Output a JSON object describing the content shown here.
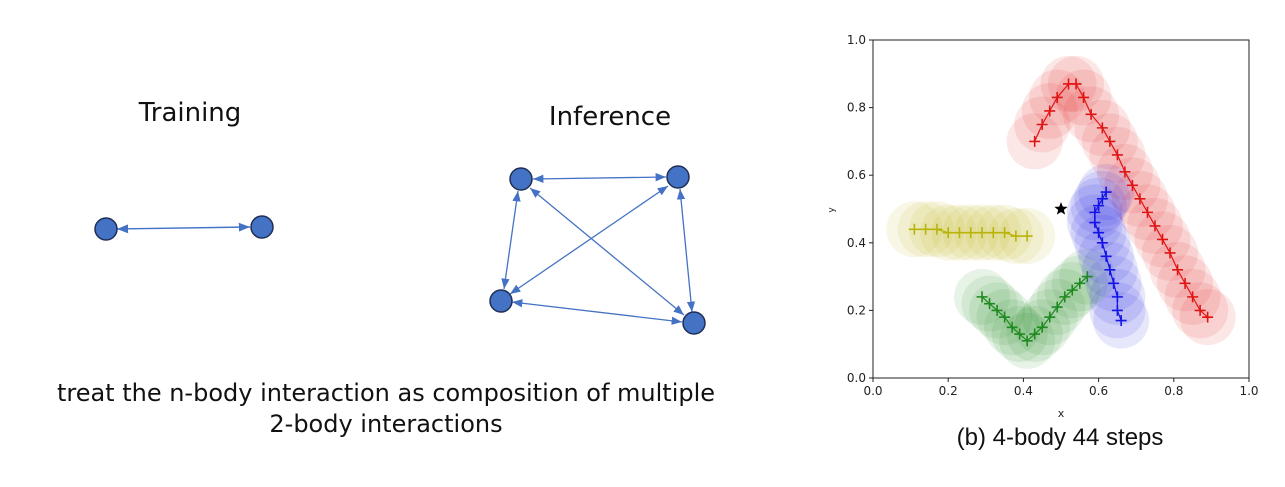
{
  "diagram": {
    "training_title": "Training",
    "inference_title": "Inference",
    "caption_line1": "treat the n-body interaction as composition of multiple",
    "caption_line2": "2-body interactions",
    "node_color": "#4472C4",
    "edge_color": "#4472C4"
  },
  "plot": {
    "caption": "(b) 4-body 44 steps",
    "xlabel": "x",
    "ylabel": "y",
    "x_ticks": [
      "0.0",
      "0.2",
      "0.4",
      "0.6",
      "0.8",
      "1.0"
    ],
    "y_ticks": [
      "0.0",
      "0.2",
      "0.4",
      "0.6",
      "0.8",
      "1.0"
    ]
  },
  "chart_data": {
    "type": "scatter",
    "xlabel": "x",
    "ylabel": "y",
    "xlim": [
      0.0,
      1.0
    ],
    "ylim": [
      0.0,
      1.0
    ],
    "series": [
      {
        "color": "#e11414",
        "marker": "+",
        "points": [
          [
            0.43,
            0.7
          ],
          [
            0.45,
            0.75
          ],
          [
            0.47,
            0.79
          ],
          [
            0.49,
            0.83
          ],
          [
            0.52,
            0.87
          ],
          [
            0.54,
            0.87
          ],
          [
            0.56,
            0.83
          ],
          [
            0.58,
            0.78
          ],
          [
            0.61,
            0.74
          ],
          [
            0.63,
            0.7
          ],
          [
            0.65,
            0.66
          ],
          [
            0.67,
            0.61
          ],
          [
            0.69,
            0.57
          ],
          [
            0.71,
            0.53
          ],
          [
            0.73,
            0.49
          ],
          [
            0.75,
            0.45
          ],
          [
            0.77,
            0.41
          ],
          [
            0.79,
            0.37
          ],
          [
            0.81,
            0.32
          ],
          [
            0.83,
            0.28
          ],
          [
            0.85,
            0.24
          ],
          [
            0.87,
            0.2
          ],
          [
            0.89,
            0.18
          ]
        ]
      },
      {
        "color": "#b8b40a",
        "marker": "+",
        "points": [
          [
            0.11,
            0.44
          ],
          [
            0.14,
            0.44
          ],
          [
            0.17,
            0.44
          ],
          [
            0.2,
            0.43
          ],
          [
            0.23,
            0.43
          ],
          [
            0.26,
            0.43
          ],
          [
            0.29,
            0.43
          ],
          [
            0.32,
            0.43
          ],
          [
            0.35,
            0.43
          ],
          [
            0.38,
            0.42
          ],
          [
            0.41,
            0.42
          ]
        ]
      },
      {
        "color": "#1f8a1f",
        "marker": "+",
        "points": [
          [
            0.29,
            0.24
          ],
          [
            0.31,
            0.22
          ],
          [
            0.33,
            0.2
          ],
          [
            0.35,
            0.18
          ],
          [
            0.37,
            0.15
          ],
          [
            0.39,
            0.13
          ],
          [
            0.41,
            0.11
          ],
          [
            0.43,
            0.13
          ],
          [
            0.45,
            0.15
          ],
          [
            0.47,
            0.18
          ],
          [
            0.49,
            0.21
          ],
          [
            0.51,
            0.24
          ],
          [
            0.53,
            0.26
          ],
          [
            0.55,
            0.28
          ],
          [
            0.57,
            0.3
          ]
        ]
      },
      {
        "color": "#1414e6",
        "marker": "+",
        "points": [
          [
            0.62,
            0.55
          ],
          [
            0.61,
            0.53
          ],
          [
            0.6,
            0.51
          ],
          [
            0.59,
            0.49
          ],
          [
            0.59,
            0.46
          ],
          [
            0.6,
            0.43
          ],
          [
            0.61,
            0.4
          ],
          [
            0.62,
            0.36
          ],
          [
            0.63,
            0.32
          ],
          [
            0.64,
            0.28
          ],
          [
            0.65,
            0.24
          ],
          [
            0.65,
            0.2
          ],
          [
            0.66,
            0.17
          ]
        ]
      }
    ],
    "start_marker": {
      "x": 0.5,
      "y": 0.5,
      "marker": "star",
      "color": "#000000"
    }
  }
}
